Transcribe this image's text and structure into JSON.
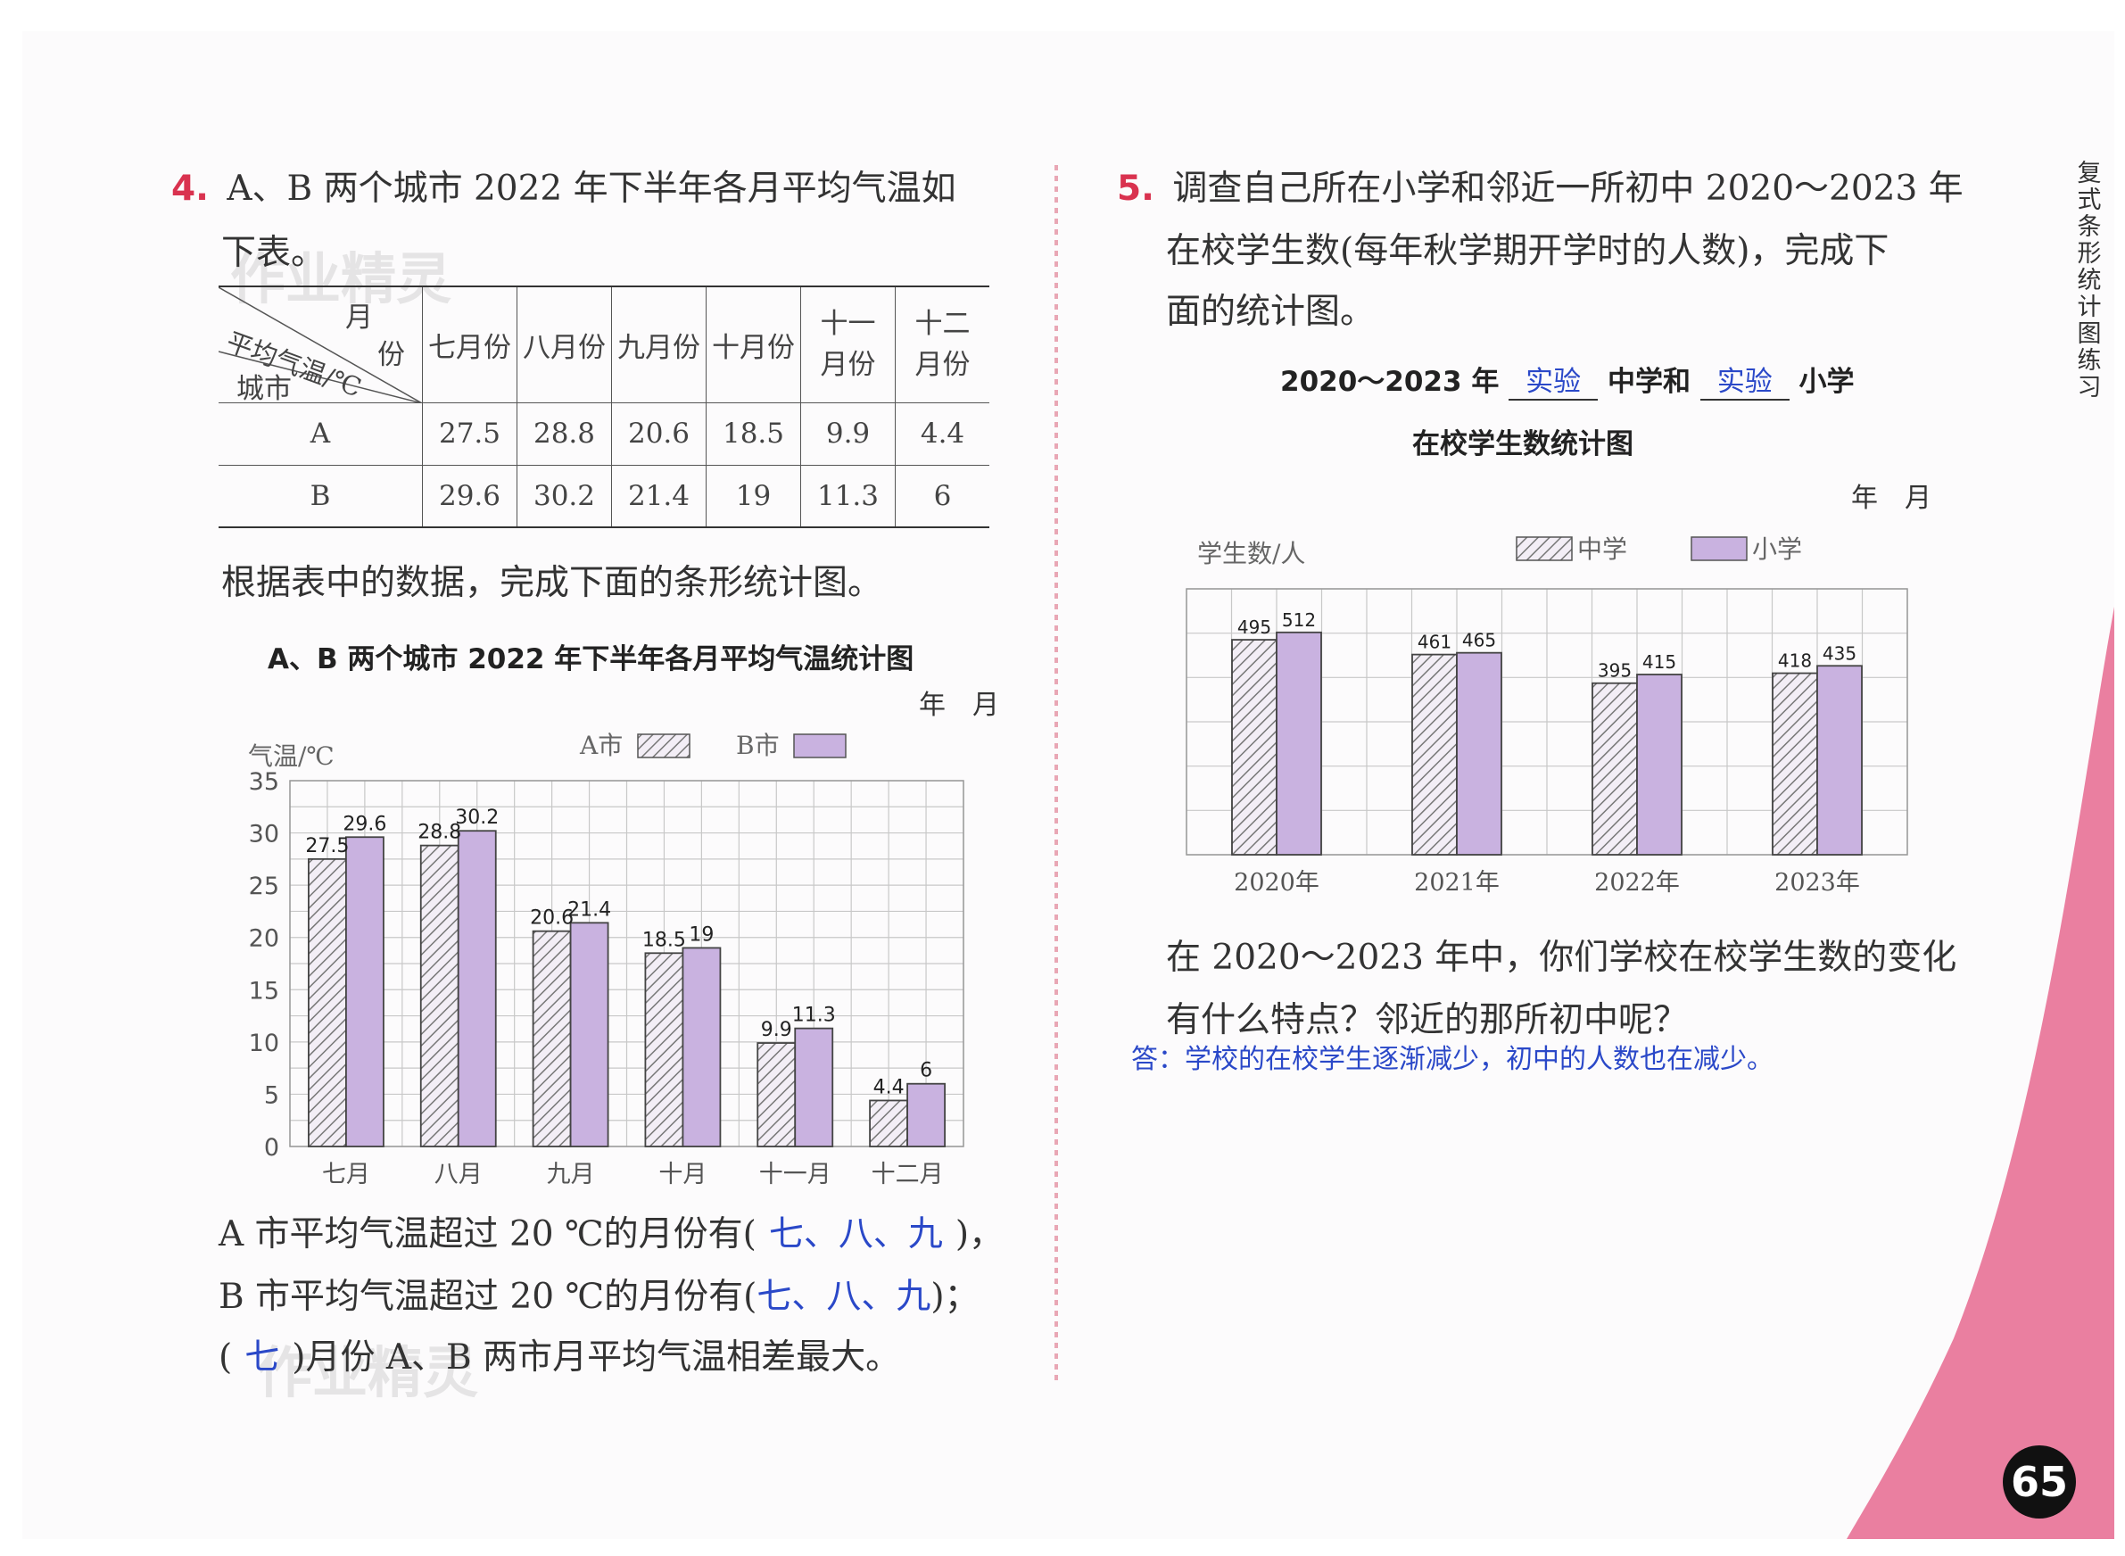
{
  "watermark": "作业精灵",
  "page_number": "65",
  "sidebar_title": "复式条形统计图练习",
  "q4": {
    "number": "4.",
    "prompt_line1": "A、B 两个城市 2022 年下半年各月平均气温如",
    "prompt_line2": "下表。",
    "table": {
      "corner_month": "月",
      "corner_fen": "份",
      "corner_temp": "平均气温/℃",
      "corner_city": "城市",
      "headers": [
        "七月份",
        "八月份",
        "九月份",
        "十月份",
        "十一\n月份",
        "十二\n月份"
      ],
      "rows": [
        {
          "city": "A",
          "values": [
            "27.5",
            "28.8",
            "20.6",
            "18.5",
            "9.9",
            "4.4"
          ]
        },
        {
          "city": "B",
          "values": [
            "29.6",
            "30.2",
            "21.4",
            "19",
            "11.3",
            "6"
          ]
        }
      ]
    },
    "instruction": "根据表中的数据，完成下面的条形统计图。",
    "date_label": "年　月",
    "answer_line1_pre": "A 市平均气温超过 20 ℃的月份有(",
    "answer_line1_ans": "七、八、九",
    "answer_line1_post": ")，",
    "answer_line2_pre": "B 市平均气温超过 20 ℃的月份有(",
    "answer_line2_ans": "七、八、九",
    "answer_line2_post": ")；",
    "answer_line3_pre": "(",
    "answer_line3_ans": "七",
    "answer_line3_post": ")月份 A、B 两市月平均气温相差最大。"
  },
  "q5": {
    "number": "5.",
    "prompt_line1": "调查自己所在小学和邻近一所初中 2020～2023 年",
    "prompt_line2": "在校学生数(每年秋学期开学时的人数)，完成下",
    "prompt_line3": "面的统计图。",
    "chart_title_pre": "2020～2023 年",
    "fill1": "实验",
    "chart_title_mid": "中学和",
    "fill2": "实验",
    "chart_title_post": "小学",
    "chart_title_line2": "在校学生数统计图",
    "date_label": "年　月",
    "question_line1": "在 2020～2023 年中，你们学校在校学生数的变化",
    "question_line2": "有什么特点？邻近的那所初中呢？",
    "answer": "答：学校的在校学生逐渐减少，初中的人数也在减少。"
  },
  "chart_data": [
    {
      "type": "bar",
      "title": "A、B 两个城市 2022 年下半年各月平均气温统计图",
      "ylabel": "气温/℃",
      "categories": [
        "七月",
        "八月",
        "九月",
        "十月",
        "十一月",
        "十二月"
      ],
      "ylim": [
        0,
        35
      ],
      "yticks": [
        "0",
        "5",
        "10",
        "15",
        "20",
        "25",
        "30",
        "35"
      ],
      "grid": true,
      "legend_position": "top",
      "series": [
        {
          "name": "A市",
          "values": [
            27.5,
            28.8,
            20.6,
            18.5,
            9.9,
            4.4
          ],
          "labels": [
            "27.5",
            "28.8",
            "20.6",
            "18.5",
            "9.9",
            "4.4"
          ],
          "pattern": "hatched"
        },
        {
          "name": "B市",
          "values": [
            29.6,
            30.2,
            21.4,
            19,
            11.3,
            6
          ],
          "labels": [
            "29.6",
            "30.2",
            "21.4",
            "19",
            "11.3",
            "6"
          ],
          "color": "#c9b2e0"
        }
      ]
    },
    {
      "type": "bar",
      "title": "",
      "ylabel": "学生数/人",
      "categories": [
        "2020年",
        "2021年",
        "2022年",
        "2023年"
      ],
      "grid": true,
      "legend_position": "top",
      "series": [
        {
          "name": "中学",
          "values": [
            495,
            461,
            395,
            418
          ],
          "labels": [
            "495",
            "461",
            "395",
            "418"
          ],
          "pattern": "hatched"
        },
        {
          "name": "小学",
          "values": [
            512,
            465,
            415,
            435
          ],
          "labels": [
            "512",
            "465",
            "415",
            "435"
          ],
          "color": "#c9b2e0"
        }
      ]
    }
  ]
}
